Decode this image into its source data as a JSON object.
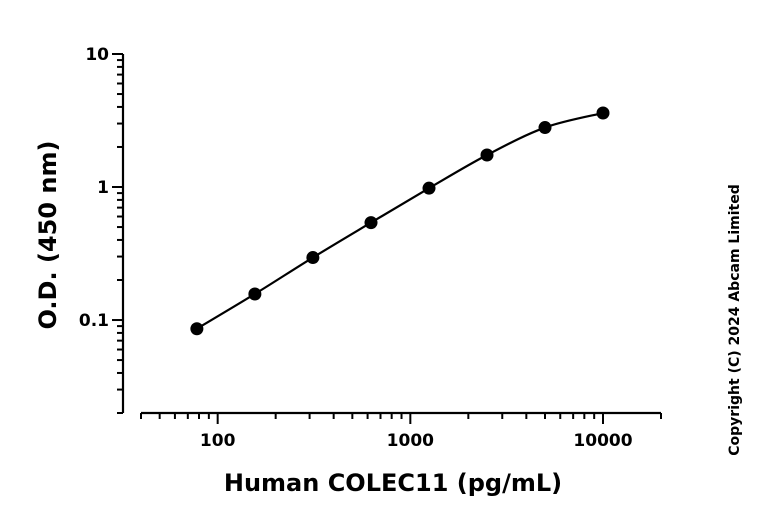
{
  "chart_data": {
    "type": "scatter",
    "xlabel": "Human COLEC11 (pg/mL)",
    "ylabel": "O.D. (450 nm)",
    "x_scale": "log",
    "y_scale": "log",
    "xlim": [
      40,
      20000
    ],
    "ylim": [
      0.02,
      10
    ],
    "x_ticks": [
      {
        "value": 100,
        "label": "100"
      },
      {
        "value": 1000,
        "label": "1000"
      },
      {
        "value": 10000,
        "label": "10000"
      }
    ],
    "y_ticks": [
      {
        "value": 0.1,
        "label": "0.1"
      },
      {
        "value": 1,
        "label": "1"
      },
      {
        "value": 10,
        "label": "10"
      }
    ],
    "grid": false,
    "series": [
      {
        "x": [
          78,
          156,
          312,
          625,
          1250,
          2500,
          5000,
          10000
        ],
        "y": [
          0.086,
          0.157,
          0.295,
          0.54,
          0.98,
          1.74,
          2.8,
          3.6
        ]
      }
    ],
    "fit_curve": true,
    "annotation": "Copyright (C) 2024 Abcam Limited"
  }
}
